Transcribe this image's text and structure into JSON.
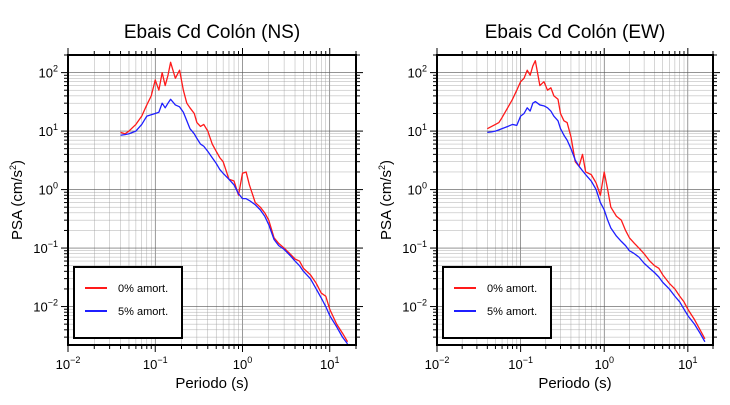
{
  "chart_data": [
    {
      "type": "line",
      "title": "Ebais Cd Colón (NS)",
      "xlabel": "Periodo (s)",
      "ylabel_base": "PSA (cm/s",
      "ylabel_sup": "2",
      "ylabel_close": ")",
      "xscale": "log",
      "yscale": "log",
      "xlim": [
        0.01,
        20
      ],
      "ylim": [
        0.0022,
        200
      ],
      "grid": true,
      "legend_position": "bottom-left",
      "x_ticks": [
        {
          "base": "10",
          "exp": "−2"
        },
        {
          "base": "10",
          "exp": "−1"
        },
        {
          "base": "10",
          "exp": "0"
        },
        {
          "base": "10",
          "exp": "1"
        }
      ],
      "y_ticks": [
        {
          "base": "10",
          "exp": "−2"
        },
        {
          "base": "10",
          "exp": "−1"
        },
        {
          "base": "10",
          "exp": "0"
        },
        {
          "base": "10",
          "exp": "1"
        },
        {
          "base": "10",
          "exp": "2"
        }
      ],
      "series": [
        {
          "name": "0% amort.",
          "color": "#ff1a1a",
          "x": [
            0.04,
            0.045,
            0.05,
            0.055,
            0.06,
            0.07,
            0.08,
            0.09,
            0.1,
            0.11,
            0.12,
            0.13,
            0.14,
            0.15,
            0.17,
            0.19,
            0.21,
            0.23,
            0.25,
            0.28,
            0.3,
            0.33,
            0.36,
            0.4,
            0.45,
            0.5,
            0.55,
            0.6,
            0.7,
            0.8,
            0.9,
            1.0,
            1.1,
            1.2,
            1.4,
            1.6,
            1.8,
            2.0,
            2.3,
            2.6,
            3.0,
            3.5,
            4.0,
            4.5,
            5.0,
            6.0,
            7.0,
            8.0,
            9.0,
            10.0,
            12.0,
            14.0,
            16.0
          ],
          "y": [
            9.5,
            9.0,
            10.0,
            11.5,
            13.0,
            18.0,
            28.0,
            40.0,
            75.0,
            50.0,
            100.0,
            60.0,
            90.0,
            150.0,
            80.0,
            110.0,
            50.0,
            30.0,
            25.0,
            20.0,
            14.0,
            12.0,
            13.0,
            10.0,
            6.0,
            4.5,
            3.5,
            3.0,
            1.5,
            1.4,
            0.8,
            1.9,
            2.0,
            1.2,
            0.6,
            0.5,
            0.4,
            0.3,
            0.15,
            0.12,
            0.1,
            0.08,
            0.065,
            0.06,
            0.045,
            0.035,
            0.025,
            0.017,
            0.015,
            0.009,
            0.005,
            0.0035,
            0.0025
          ]
        },
        {
          "name": "5% amort.",
          "color": "#1f1fff",
          "x": [
            0.04,
            0.045,
            0.05,
            0.055,
            0.06,
            0.07,
            0.08,
            0.09,
            0.1,
            0.11,
            0.12,
            0.13,
            0.14,
            0.15,
            0.17,
            0.19,
            0.21,
            0.23,
            0.25,
            0.28,
            0.3,
            0.33,
            0.36,
            0.4,
            0.45,
            0.5,
            0.55,
            0.6,
            0.7,
            0.8,
            0.9,
            1.0,
            1.1,
            1.2,
            1.4,
            1.6,
            1.8,
            2.0,
            2.3,
            2.6,
            3.0,
            3.5,
            4.0,
            4.5,
            5.0,
            6.0,
            7.0,
            8.0,
            9.0,
            10.0,
            12.0,
            14.0,
            16.0
          ],
          "y": [
            8.5,
            8.7,
            9.0,
            9.5,
            10.0,
            13.0,
            18.0,
            19.0,
            20.0,
            21.0,
            30.0,
            25.0,
            30.0,
            35.0,
            28.0,
            26.0,
            21.0,
            15.0,
            11.0,
            9.0,
            7.5,
            6.0,
            5.5,
            4.5,
            3.5,
            2.8,
            2.2,
            1.9,
            1.5,
            1.2,
            0.85,
            0.7,
            0.7,
            0.65,
            0.55,
            0.45,
            0.35,
            0.25,
            0.14,
            0.11,
            0.095,
            0.075,
            0.06,
            0.05,
            0.04,
            0.03,
            0.02,
            0.014,
            0.01,
            0.007,
            0.0045,
            0.003,
            0.0023
          ]
        }
      ]
    },
    {
      "type": "line",
      "title": "Ebais Cd Colón (EW)",
      "xlabel": "Periodo (s)",
      "ylabel_base": "PSA (cm/s",
      "ylabel_sup": "2",
      "ylabel_close": ")",
      "xscale": "log",
      "yscale": "log",
      "xlim": [
        0.01,
        20
      ],
      "ylim": [
        0.0022,
        200
      ],
      "grid": true,
      "legend_position": "bottom-left",
      "x_ticks": [
        {
          "base": "10",
          "exp": "−2"
        },
        {
          "base": "10",
          "exp": "−1"
        },
        {
          "base": "10",
          "exp": "0"
        },
        {
          "base": "10",
          "exp": "1"
        }
      ],
      "y_ticks": [
        {
          "base": "10",
          "exp": "−2"
        },
        {
          "base": "10",
          "exp": "−1"
        },
        {
          "base": "10",
          "exp": "0"
        },
        {
          "base": "10",
          "exp": "1"
        },
        {
          "base": "10",
          "exp": "2"
        }
      ],
      "series": [
        {
          "name": "0% amort.",
          "color": "#ff1a1a",
          "x": [
            0.04,
            0.045,
            0.05,
            0.055,
            0.06,
            0.07,
            0.08,
            0.09,
            0.1,
            0.11,
            0.12,
            0.13,
            0.14,
            0.15,
            0.17,
            0.19,
            0.21,
            0.23,
            0.25,
            0.28,
            0.3,
            0.33,
            0.36,
            0.4,
            0.45,
            0.5,
            0.55,
            0.6,
            0.7,
            0.8,
            0.9,
            1.0,
            1.1,
            1.2,
            1.4,
            1.6,
            1.8,
            2.0,
            2.3,
            2.6,
            3.0,
            3.5,
            4.0,
            4.5,
            5.0,
            6.0,
            7.0,
            8.0,
            9.0,
            10.0,
            12.0,
            14.0,
            16.0
          ],
          "y": [
            11.0,
            12.0,
            13.0,
            14.0,
            17.0,
            25.0,
            35.0,
            50.0,
            70.0,
            80.0,
            110.0,
            90.0,
            130.0,
            160.0,
            60.0,
            70.0,
            50.0,
            55.0,
            40.0,
            35.0,
            20.0,
            15.0,
            14.0,
            8.0,
            3.0,
            2.5,
            4.0,
            2.0,
            1.8,
            1.3,
            0.8,
            2.0,
            1.0,
            0.5,
            0.35,
            0.3,
            0.2,
            0.15,
            0.12,
            0.1,
            0.08,
            0.06,
            0.05,
            0.045,
            0.035,
            0.025,
            0.02,
            0.015,
            0.012,
            0.009,
            0.006,
            0.004,
            0.0028
          ]
        },
        {
          "name": "5% amort.",
          "color": "#1f1fff",
          "x": [
            0.04,
            0.045,
            0.05,
            0.055,
            0.06,
            0.07,
            0.08,
            0.09,
            0.1,
            0.11,
            0.12,
            0.13,
            0.14,
            0.15,
            0.17,
            0.19,
            0.21,
            0.23,
            0.25,
            0.28,
            0.3,
            0.33,
            0.36,
            0.4,
            0.45,
            0.5,
            0.55,
            0.6,
            0.7,
            0.8,
            0.9,
            1.0,
            1.1,
            1.2,
            1.4,
            1.6,
            1.8,
            2.0,
            2.3,
            2.6,
            3.0,
            3.5,
            4.0,
            4.5,
            5.0,
            6.0,
            7.0,
            8.0,
            9.0,
            10.0,
            12.0,
            14.0,
            16.0
          ],
          "y": [
            9.5,
            9.7,
            10.0,
            10.5,
            11.0,
            12.0,
            13.0,
            12.5,
            18.0,
            20.0,
            25.0,
            22.0,
            30.0,
            32.0,
            28.0,
            27.0,
            25.0,
            22.0,
            18.0,
            15.0,
            11.0,
            8.5,
            7.0,
            5.0,
            3.2,
            2.5,
            2.1,
            1.8,
            1.4,
            1.0,
            0.6,
            0.45,
            0.3,
            0.22,
            0.16,
            0.13,
            0.11,
            0.09,
            0.08,
            0.07,
            0.055,
            0.045,
            0.038,
            0.032,
            0.026,
            0.02,
            0.015,
            0.012,
            0.009,
            0.007,
            0.005,
            0.0035,
            0.0025
          ]
        }
      ]
    }
  ]
}
